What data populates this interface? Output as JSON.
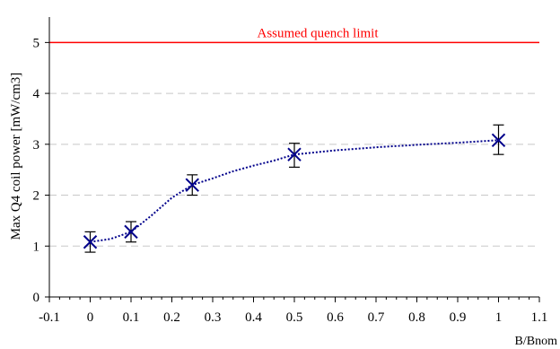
{
  "chart_data": {
    "type": "scatter",
    "xlabel": "B/Bnom",
    "ylabel": "Max Q4 coil power [mW/cm3]",
    "xlim": [
      -0.1,
      1.1
    ],
    "ylim": [
      0,
      5.5
    ],
    "x_ticks": [
      -0.1,
      0,
      0.1,
      0.2,
      0.3,
      0.4,
      0.5,
      0.6,
      0.7,
      0.8,
      0.9,
      1,
      1.1
    ],
    "x_tick_labels": [
      "-0.1",
      "0",
      "0.1",
      "0.2",
      "0.3",
      "0.4",
      "0.5",
      "0.6",
      "0.7",
      "0.8",
      "0.9",
      "1",
      "1.1"
    ],
    "y_ticks": [
      0,
      1,
      2,
      3,
      4,
      5
    ],
    "y_tick_labels": [
      "0",
      "1",
      "2",
      "3",
      "4",
      "5"
    ],
    "grid": "horizontal dashed",
    "series": [
      {
        "marker": "x",
        "color": "#00008b",
        "line_style": "dotted",
        "points": [
          {
            "x": 0,
            "y": 1.08,
            "err_low": 0.2,
            "err_high": 0.2
          },
          {
            "x": 0.1,
            "y": 1.28,
            "err_low": 0.2,
            "err_high": 0.2
          },
          {
            "x": 0.25,
            "y": 2.2,
            "err_low": 0.2,
            "err_high": 0.2
          },
          {
            "x": 0.5,
            "y": 2.8,
            "err_low": 0.25,
            "err_high": 0.22
          },
          {
            "x": 1,
            "y": 3.08,
            "err_low": 0.28,
            "err_high": 0.3
          }
        ]
      }
    ],
    "reference_line": {
      "y": 5,
      "label": "Assumed quench limit",
      "color": "#ff0000"
    },
    "curve": [
      [
        0,
        1.08
      ],
      [
        0.05,
        1.14
      ],
      [
        0.1,
        1.28
      ],
      [
        0.15,
        1.6
      ],
      [
        0.2,
        1.95
      ],
      [
        0.25,
        2.2
      ],
      [
        0.3,
        2.33
      ],
      [
        0.35,
        2.47
      ],
      [
        0.4,
        2.58
      ],
      [
        0.45,
        2.68
      ],
      [
        0.5,
        2.8
      ],
      [
        0.6,
        2.88
      ],
      [
        0.7,
        2.94
      ],
      [
        0.8,
        2.99
      ],
      [
        0.9,
        3.03
      ],
      [
        1,
        3.08
      ]
    ]
  }
}
